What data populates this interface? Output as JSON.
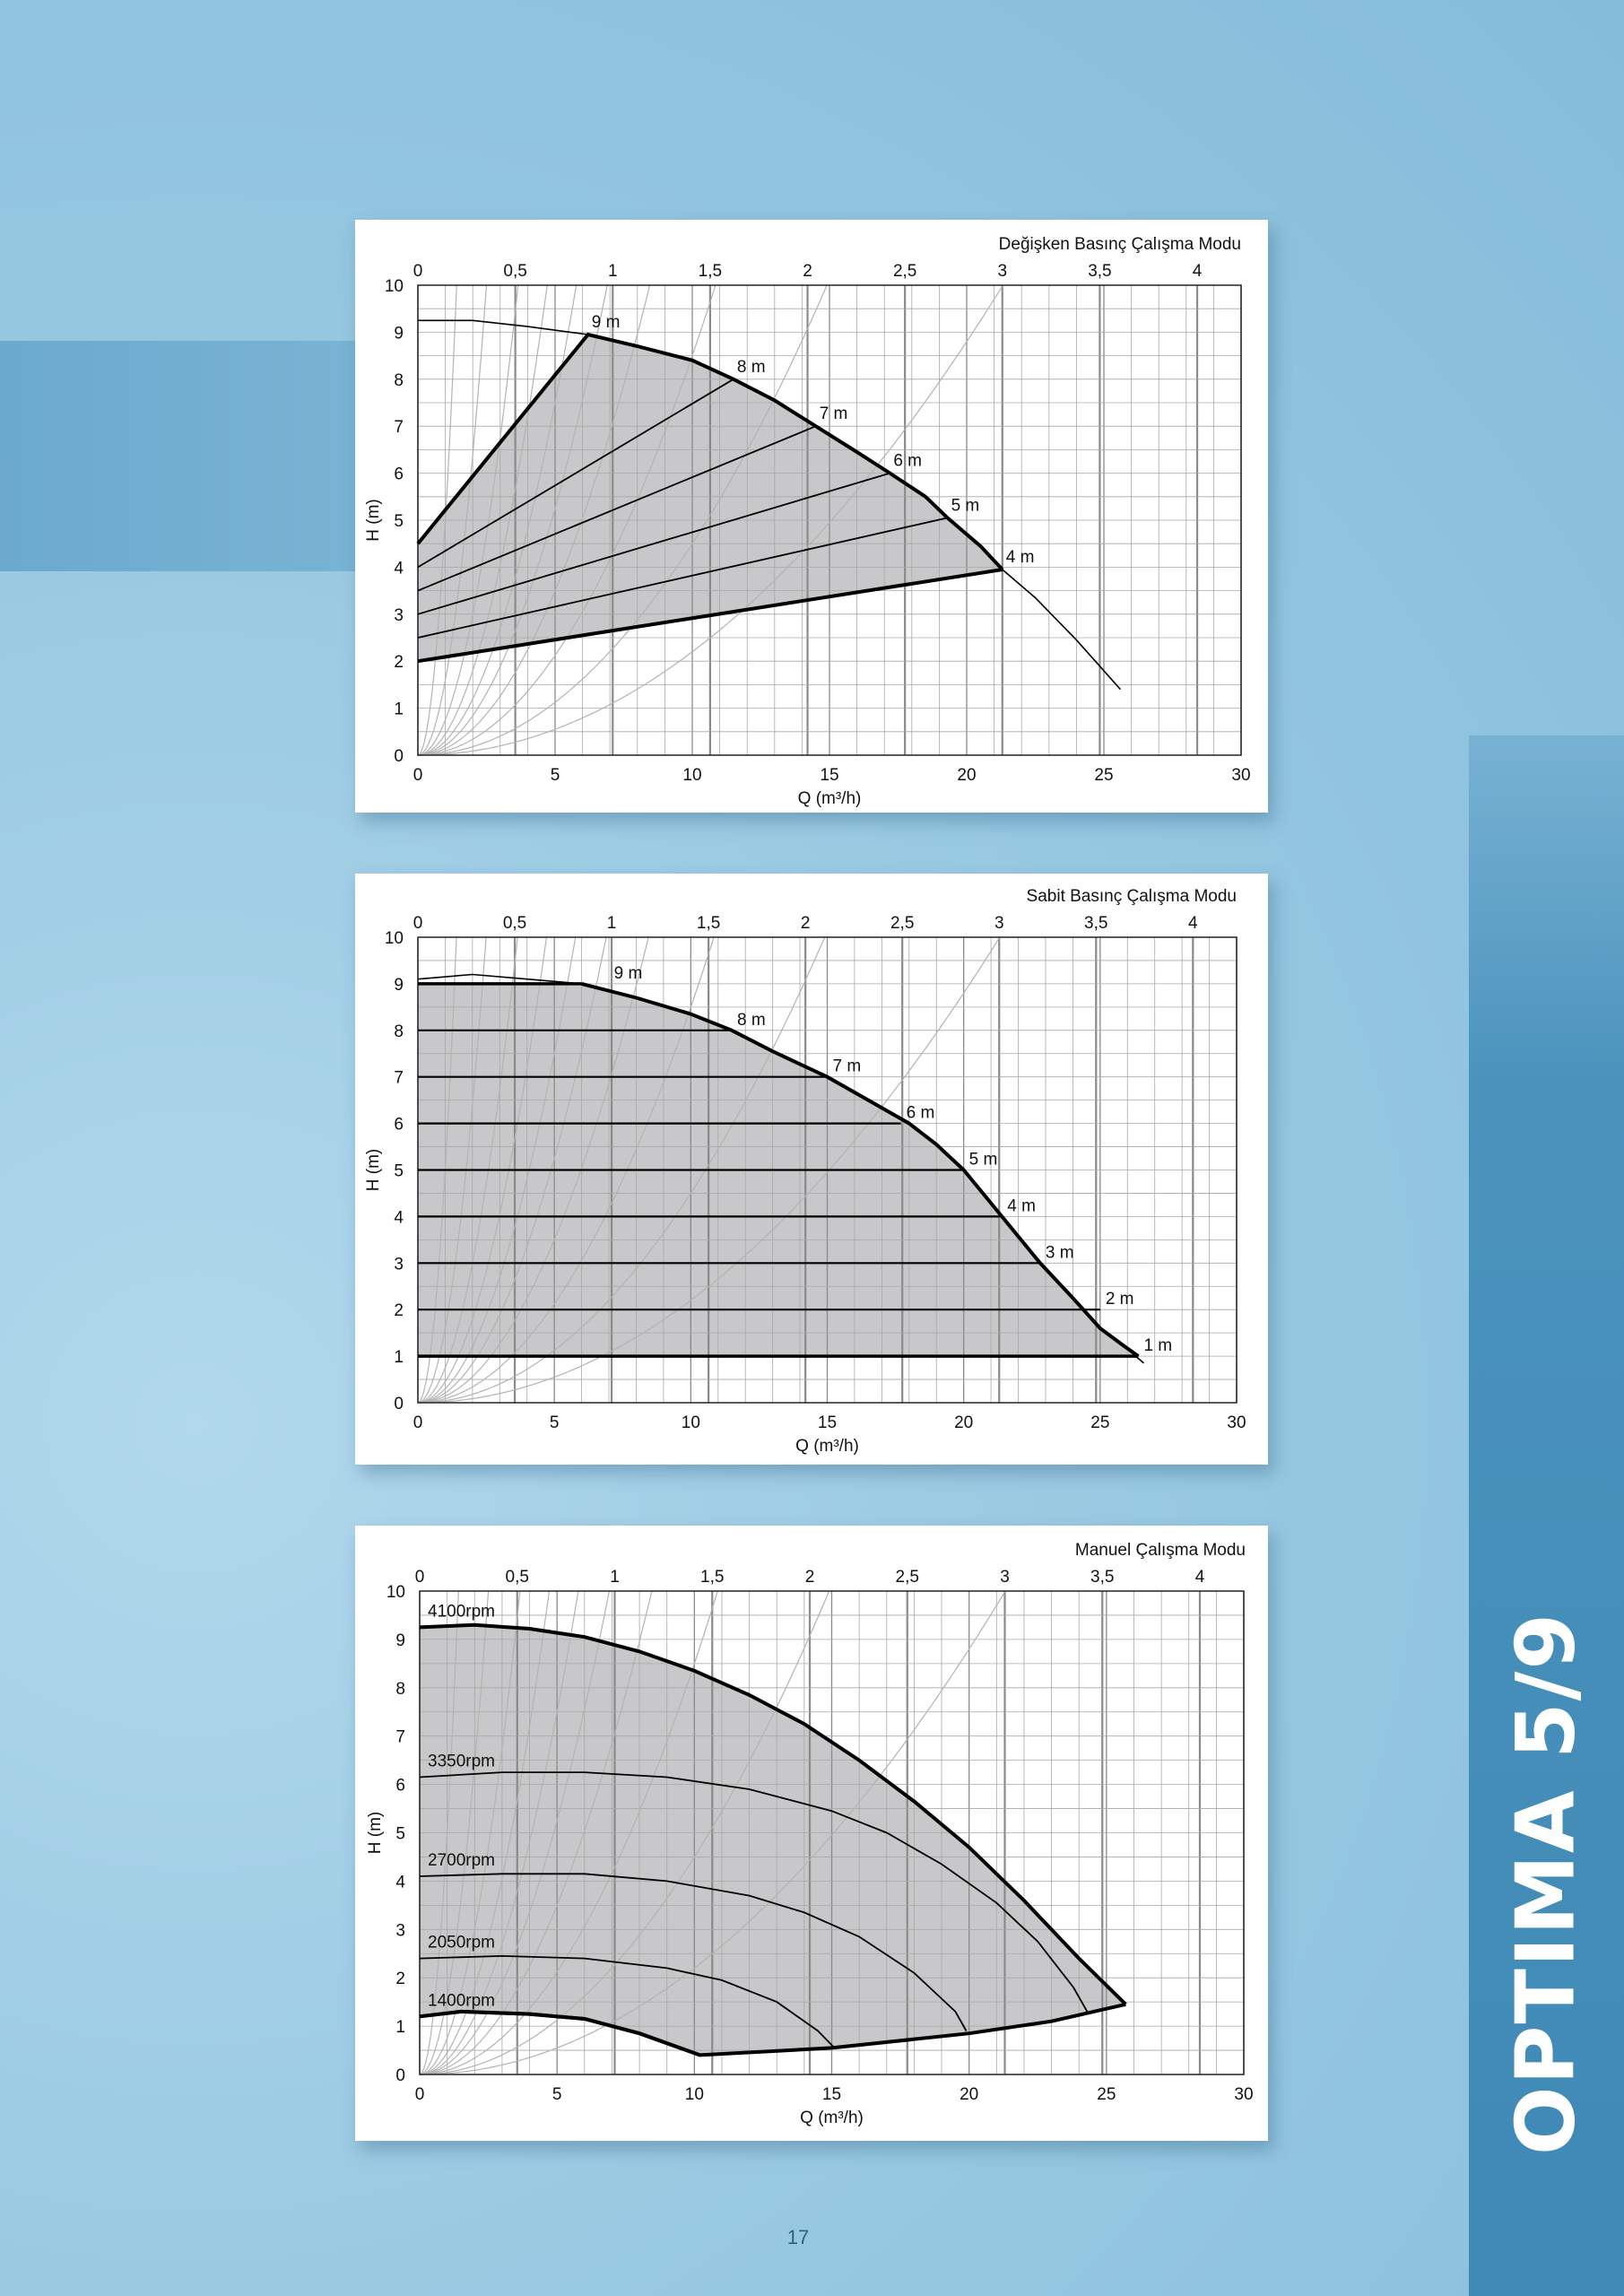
{
  "page": {
    "number": "17",
    "side_title": "OPTIMA 5/9"
  },
  "colors": {
    "shade": "#c8c8ca",
    "grid_minor": "#a8a8a8",
    "grid_major": "#8a8a8a",
    "curve": "#000000",
    "system_curve": "#b3b3b3"
  },
  "chart_data": [
    {
      "type": "area",
      "title": "Değişken Basınç Çalışma Modu",
      "xlabel": "Q (m³/h)",
      "ylabel": "H (m)",
      "xlim": [
        0,
        30
      ],
      "ylim": [
        0,
        10
      ],
      "x_ticks": [
        "0",
        "5",
        "10",
        "15",
        "20",
        "25",
        "30"
      ],
      "y_ticks": [
        "0",
        "1",
        "2",
        "3",
        "4",
        "5",
        "6",
        "7",
        "8",
        "9",
        "10"
      ],
      "top_axis": {
        "ticks": [
          "0",
          "0,5",
          "1",
          "1,5",
          "2",
          "2,5",
          "3",
          "3,5",
          "4"
        ],
        "values": [
          0,
          0.5,
          1,
          1.5,
          2,
          2.5,
          3,
          3.5,
          4
        ],
        "factor": 7.1
      },
      "grid": true,
      "max_curve": [
        [
          0,
          9.25
        ],
        [
          2,
          9.25
        ],
        [
          4,
          9.12
        ],
        [
          6.2,
          8.95
        ],
        [
          8,
          8.7
        ],
        [
          10,
          8.4
        ],
        [
          11.5,
          8.0
        ],
        [
          13,
          7.55
        ],
        [
          14.5,
          7.0
        ],
        [
          16,
          6.45
        ],
        [
          17.2,
          6.0
        ],
        [
          18.5,
          5.5
        ],
        [
          19.3,
          5.05
        ],
        [
          20.5,
          4.45
        ],
        [
          21.3,
          3.95
        ],
        [
          22.5,
          3.35
        ],
        [
          24,
          2.45
        ],
        [
          25.6,
          1.4
        ]
      ],
      "controlled_lines": [
        {
          "label": "9 m",
          "from": [
            0,
            4.5
          ],
          "to": [
            6.2,
            8.95
          ]
        },
        {
          "label": "8 m",
          "from": [
            0,
            4.0
          ],
          "to": [
            11.5,
            8.0
          ]
        },
        {
          "label": "7 m",
          "from": [
            0,
            3.5
          ],
          "to": [
            14.5,
            7.0
          ]
        },
        {
          "label": "6 m",
          "from": [
            0,
            3.0
          ],
          "to": [
            17.2,
            6.0
          ]
        },
        {
          "label": "5 m",
          "from": [
            0,
            2.5
          ],
          "to": [
            19.3,
            5.05
          ]
        },
        {
          "label": "4 m",
          "from": [
            0,
            2.0
          ],
          "to": [
            21.3,
            3.95
          ]
        }
      ],
      "system_curve_ks": [
        5,
        1.6,
        0.75,
        0.45,
        0.3,
        0.21,
        0.14,
        0.085,
        0.045,
        0.022
      ]
    },
    {
      "type": "area",
      "title": "Sabit Basınç Çalışma Modu",
      "xlabel": "Q (m³/h)",
      "ylabel": "H (m)",
      "xlim": [
        0,
        30
      ],
      "ylim": [
        0,
        10
      ],
      "x_ticks": [
        "0",
        "5",
        "10",
        "15",
        "20",
        "25",
        "30"
      ],
      "y_ticks": [
        "0",
        "1",
        "2",
        "3",
        "4",
        "5",
        "6",
        "7",
        "8",
        "9",
        "10"
      ],
      "top_axis": {
        "ticks": [
          "0",
          "0,5",
          "1",
          "1,5",
          "2",
          "2,5",
          "3",
          "3,5",
          "4"
        ],
        "values": [
          0,
          0.5,
          1,
          1.5,
          2,
          2.5,
          3,
          3.5,
          4
        ],
        "factor": 7.1
      },
      "grid": true,
      "max_curve": [
        [
          0,
          9.1
        ],
        [
          2,
          9.2
        ],
        [
          4,
          9.1
        ],
        [
          6,
          9.0
        ],
        [
          8,
          8.7
        ],
        [
          10,
          8.35
        ],
        [
          11.5,
          8.0
        ],
        [
          13,
          7.55
        ],
        [
          15,
          7.0
        ],
        [
          16.5,
          6.5
        ],
        [
          18,
          6.0
        ],
        [
          19,
          5.55
        ],
        [
          20,
          5.0
        ],
        [
          21.4,
          4.0
        ],
        [
          22.8,
          3.0
        ],
        [
          24,
          2.25
        ],
        [
          25,
          1.6
        ],
        [
          25.8,
          1.25
        ],
        [
          26.6,
          0.85
        ]
      ],
      "constant_lines": [
        {
          "label": "9 m",
          "h": 9,
          "x_end": 6.0
        },
        {
          "label": "8 m",
          "h": 8,
          "x_end": 11.5
        },
        {
          "label": "7 m",
          "h": 7,
          "x_end": 15.0
        },
        {
          "label": "6 m",
          "h": 6,
          "x_end": 17.7
        },
        {
          "label": "5 m",
          "h": 5,
          "x_end": 20.0
        },
        {
          "label": "4 m",
          "h": 4,
          "x_end": 21.4
        },
        {
          "label": "3 m",
          "h": 3,
          "x_end": 22.8
        },
        {
          "label": "2 m",
          "h": 2,
          "x_end": 25.0
        },
        {
          "label": "1 m",
          "h": 1,
          "x_end": 26.4
        }
      ],
      "system_curve_ks": [
        5,
        1.6,
        0.75,
        0.45,
        0.3,
        0.21,
        0.14,
        0.085,
        0.045,
        0.022
      ]
    },
    {
      "type": "area",
      "title": "Manuel Çalışma Modu",
      "xlabel": "Q (m³/h)",
      "ylabel": "H (m)",
      "xlim": [
        0,
        30
      ],
      "ylim": [
        0,
        10
      ],
      "x_ticks": [
        "0",
        "5",
        "10",
        "15",
        "20",
        "25",
        "30"
      ],
      "y_ticks": [
        "0",
        "1",
        "2",
        "3",
        "4",
        "5",
        "6",
        "7",
        "8",
        "9",
        "10"
      ],
      "top_axis": {
        "ticks": [
          "0",
          "0,5",
          "1",
          "1,5",
          "2",
          "2,5",
          "3",
          "3,5",
          "4"
        ],
        "values": [
          0,
          0.5,
          1,
          1.5,
          2,
          2.5,
          3,
          3.5,
          4
        ],
        "factor": 7.1
      },
      "grid": true,
      "speed_curves": [
        {
          "label": "4100rpm",
          "points": [
            [
              0,
              9.25
            ],
            [
              2,
              9.3
            ],
            [
              4,
              9.22
            ],
            [
              6,
              9.05
            ],
            [
              8,
              8.75
            ],
            [
              10,
              8.35
            ],
            [
              12,
              7.85
            ],
            [
              14,
              7.25
            ],
            [
              16,
              6.5
            ],
            [
              18,
              5.65
            ],
            [
              20,
              4.7
            ],
            [
              22,
              3.6
            ],
            [
              24,
              2.4
            ],
            [
              25.7,
              1.45
            ]
          ]
        },
        {
          "label": "3350rpm",
          "points": [
            [
              0,
              6.15
            ],
            [
              3,
              6.25
            ],
            [
              6,
              6.25
            ],
            [
              9,
              6.15
            ],
            [
              12,
              5.9
            ],
            [
              15,
              5.45
            ],
            [
              17,
              5.0
            ],
            [
              19,
              4.35
            ],
            [
              21,
              3.55
            ],
            [
              22.5,
              2.75
            ],
            [
              23.8,
              1.8
            ],
            [
              24.3,
              1.3
            ]
          ]
        },
        {
          "label": "2700rpm",
          "points": [
            [
              0,
              4.1
            ],
            [
              3,
              4.15
            ],
            [
              6,
              4.15
            ],
            [
              9,
              4.0
            ],
            [
              12,
              3.7
            ],
            [
              14,
              3.35
            ],
            [
              16,
              2.85
            ],
            [
              18,
              2.1
            ],
            [
              19.5,
              1.3
            ],
            [
              19.9,
              0.9
            ]
          ]
        },
        {
          "label": "2050rpm",
          "points": [
            [
              0,
              2.4
            ],
            [
              3,
              2.45
            ],
            [
              6,
              2.4
            ],
            [
              9,
              2.2
            ],
            [
              11,
              1.95
            ],
            [
              13,
              1.5
            ],
            [
              14.5,
              0.9
            ],
            [
              15.1,
              0.55
            ]
          ]
        },
        {
          "label": "1400rpm",
          "points": [
            [
              0,
              1.2
            ],
            [
              1.5,
              1.3
            ],
            [
              4,
              1.25
            ],
            [
              6,
              1.15
            ],
            [
              8,
              0.85
            ],
            [
              10.2,
              0.4
            ]
          ]
        }
      ],
      "min_curve": [
        [
          0,
          1.2
        ],
        [
          1.5,
          1.3
        ],
        [
          4,
          1.25
        ],
        [
          6,
          1.15
        ],
        [
          8,
          0.85
        ],
        [
          10.2,
          0.4
        ],
        [
          15,
          0.55
        ],
        [
          20,
          0.85
        ],
        [
          23,
          1.1
        ],
        [
          25.7,
          1.45
        ]
      ],
      "system_curve_ks": [
        5,
        1.6,
        0.75,
        0.45,
        0.3,
        0.21,
        0.14,
        0.085,
        0.045,
        0.022
      ]
    }
  ]
}
